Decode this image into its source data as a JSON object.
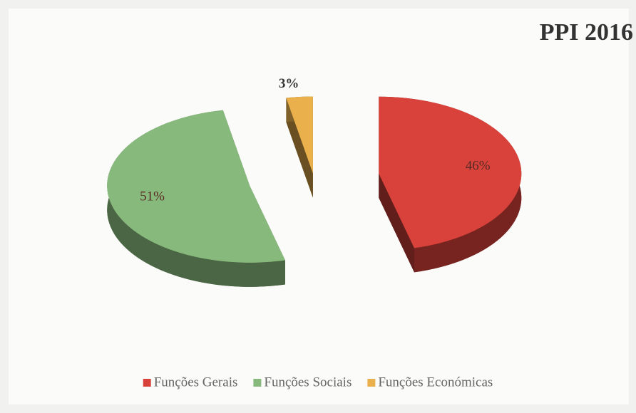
{
  "chart_data": {
    "type": "pie",
    "title": "PPI 2016",
    "categories": [
      "Funções Gerais",
      "Funções Sociais",
      "Funções Económicas"
    ],
    "values": [
      46,
      51,
      3
    ],
    "value_labels": [
      "46%",
      "51%",
      "3%"
    ],
    "colors": [
      "#d8423b",
      "#88b97c",
      "#e9b04b"
    ],
    "legend": "bottom"
  }
}
